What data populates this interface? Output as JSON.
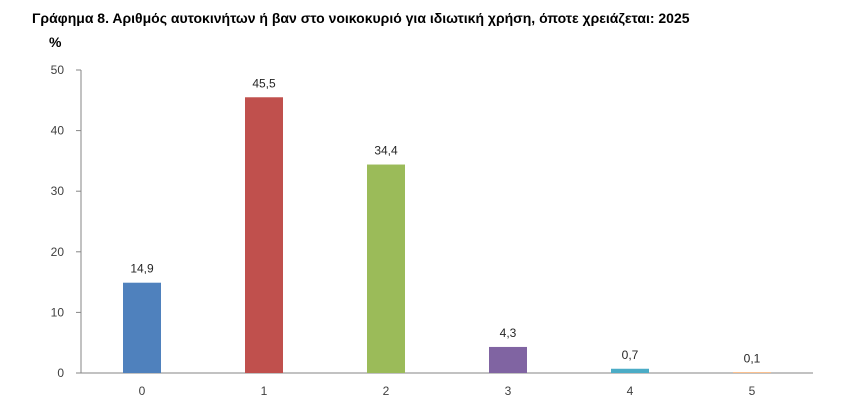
{
  "chart_data": {
    "type": "bar",
    "title": "Γράφημα 8. Αριθμός αυτοκινήτων ή βαν στο νοικοκυριό για ιδιωτική χρήση, όποτε χρειάζεται: 2025",
    "ylabel": "%",
    "xlabel": "",
    "categories": [
      "0",
      "1",
      "2",
      "3",
      "4",
      "5"
    ],
    "values": [
      14.9,
      45.5,
      34.4,
      4.3,
      0.7,
      0.1
    ],
    "value_labels": [
      "14,9",
      "45,5",
      "34,4",
      "4,3",
      "0,7",
      "0,1"
    ],
    "bar_colors": [
      "#4f81bd",
      "#c0504d",
      "#9bbb59",
      "#8064a2",
      "#4bacc6",
      "#f79646"
    ],
    "ylim": [
      0,
      50
    ],
    "y_ticks": [
      0,
      10,
      20,
      30,
      40,
      50
    ],
    "grid": false,
    "legend": "none"
  }
}
